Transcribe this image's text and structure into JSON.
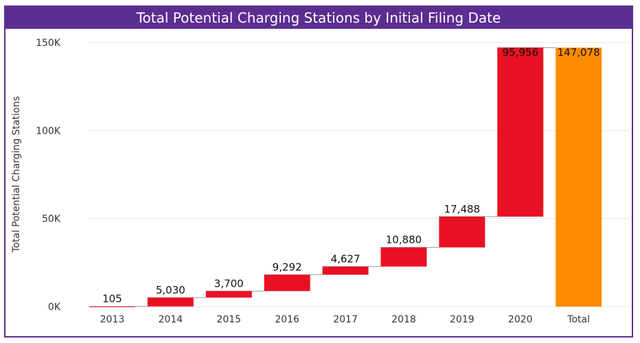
{
  "chart_data": {
    "type": "waterfall",
    "title": "Total Potential Charging Stations by Initial Filing Date",
    "xlabel": "",
    "ylabel": "Total Potential Charging Stations",
    "ylim": [
      0,
      150000
    ],
    "yticks": [
      0,
      50000,
      100000,
      150000
    ],
    "ytick_labels": [
      "0K",
      "50K",
      "100K",
      "150K"
    ],
    "categories": [
      "2013",
      "2014",
      "2015",
      "2016",
      "2017",
      "2018",
      "2019",
      "2020",
      "Total"
    ],
    "values": [
      105,
      5030,
      3700,
      9292,
      4627,
      10880,
      17488,
      95956,
      147078
    ],
    "data_labels": [
      "105",
      "5,030",
      "3,700",
      "9,292",
      "4,627",
      "10,880",
      "17,488",
      "95,956",
      "147,078"
    ],
    "increase_color": "#e81123",
    "total_color": "#ff8c00",
    "gridlines": true
  }
}
